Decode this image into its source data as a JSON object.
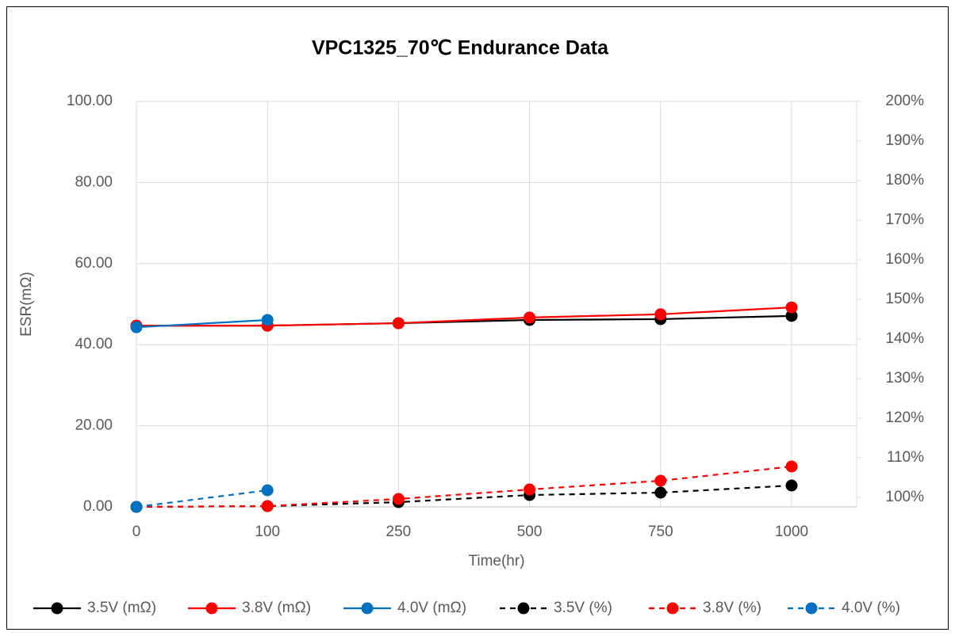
{
  "chart_data": {
    "type": "line",
    "title": "VPC1325_70℃ Endurance Data",
    "xlabel": "Time(hr)",
    "ylabel": "ESR(mΩ)",
    "categories": [
      "0",
      "100",
      "250",
      "500",
      "750",
      "1000"
    ],
    "ylim": [
      0,
      100
    ],
    "yticks": [
      {
        "value": 0,
        "label": "0.00"
      },
      {
        "value": 20,
        "label": "20.00"
      },
      {
        "value": 40,
        "label": "40.00"
      },
      {
        "value": 60,
        "label": "60.00"
      },
      {
        "value": 80,
        "label": "80.00"
      },
      {
        "value": 100,
        "label": "100.00"
      }
    ],
    "y2lim": [
      97.6,
      200
    ],
    "y2ticks": [
      {
        "value": 100,
        "label": "100%"
      },
      {
        "value": 110,
        "label": "110%"
      },
      {
        "value": 120,
        "label": "120%"
      },
      {
        "value": 130,
        "label": "130%"
      },
      {
        "value": 140,
        "label": "140%"
      },
      {
        "value": 150,
        "label": "150%"
      },
      {
        "value": 160,
        "label": "160%"
      },
      {
        "value": 170,
        "label": "170%"
      },
      {
        "value": 180,
        "label": "180%"
      },
      {
        "value": 190,
        "label": "190%"
      },
      {
        "value": 200,
        "label": "200%"
      }
    ],
    "grid": true,
    "legend": "bottom",
    "series": [
      {
        "name": "3.5V (mΩ)",
        "color": "#000000",
        "dashed": false,
        "values": [
          44.7,
          44.7,
          45.3,
          46.1,
          46.3,
          47.1
        ]
      },
      {
        "name": "3.8V (mΩ)",
        "color": "#ff0000",
        "dashed": false,
        "values": [
          44.7,
          44.7,
          45.3,
          46.7,
          47.5,
          49.2
        ]
      },
      {
        "name": "4.0V (mΩ)",
        "color": "#0070c0",
        "dashed": false,
        "values": [
          44.3,
          46.1,
          null,
          null,
          null,
          null
        ]
      },
      {
        "name": "3.5V (%)",
        "color": "#000000",
        "dashed": true,
        "axis": "y2",
        "values": [
          97.6,
          97.8,
          98.8,
          100.6,
          101.2,
          103
        ]
      },
      {
        "name": "3.8V (%)",
        "color": "#ff0000",
        "dashed": true,
        "axis": "y2",
        "values": [
          97.6,
          97.8,
          99.6,
          102,
          104.2,
          107.8
        ]
      },
      {
        "name": "4.0V (%)",
        "color": "#0070c0",
        "dashed": true,
        "axis": "y2",
        "values": [
          97.6,
          101.8,
          null,
          null,
          null,
          null
        ]
      }
    ]
  }
}
